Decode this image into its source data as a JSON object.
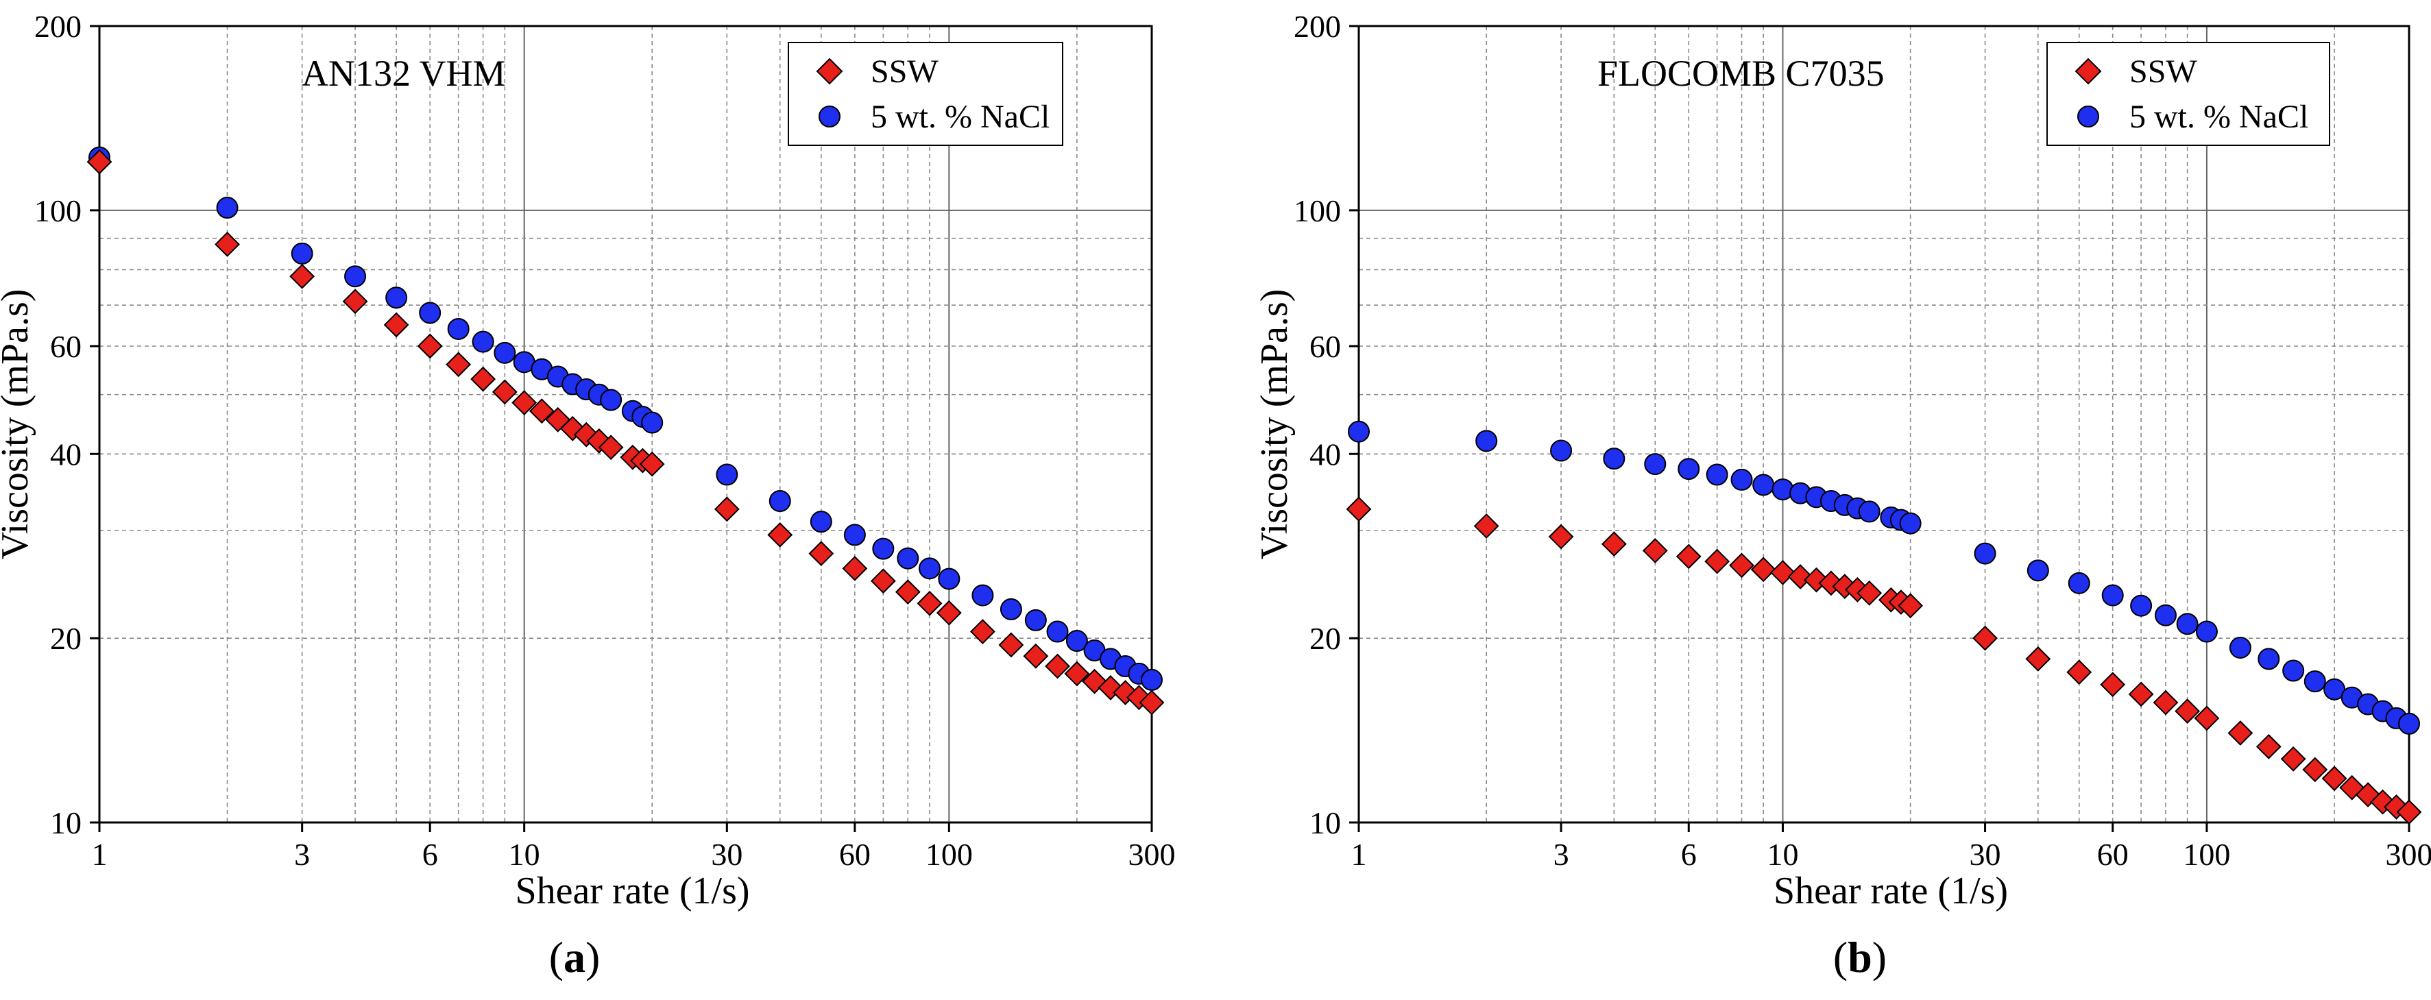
{
  "chart_data": [
    {
      "type": "scatter",
      "panel_label": "a",
      "title": "AN132 VHM",
      "xlabel": "Shear rate (1/s)",
      "ylabel": "Viscosity (mPa.s)",
      "xscale": "log",
      "yscale": "log",
      "xlim": [
        1,
        300
      ],
      "ylim": [
        10,
        200
      ],
      "xticks": [
        1,
        3,
        6,
        10,
        30,
        60,
        100,
        300
      ],
      "yticks": [
        10,
        20,
        40,
        60,
        100,
        200
      ],
      "grid": true,
      "legend_position": "top-right",
      "series": [
        {
          "name": "SSW",
          "marker": "diamond",
          "color": "#e8201c",
          "x": [
            1,
            2,
            3,
            4,
            5,
            6,
            7,
            8,
            9,
            10,
            11,
            12,
            13,
            14,
            15,
            16,
            18,
            19,
            20,
            30,
            40,
            50,
            60,
            70,
            80,
            90,
            100,
            120,
            140,
            160,
            180,
            200,
            220,
            240,
            260,
            280,
            300
          ],
          "y": [
            120,
            88,
            78,
            71,
            65,
            60,
            56,
            53,
            50.5,
            48.5,
            47,
            45.5,
            44,
            43,
            42,
            41,
            39.5,
            39,
            38.5,
            32.5,
            29.5,
            27.5,
            26,
            24.8,
            23.8,
            22.8,
            22,
            20.5,
            19.5,
            18.7,
            18,
            17.5,
            17,
            16.6,
            16.3,
            16,
            15.7
          ]
        },
        {
          "name": "5 wt. % NaCl",
          "marker": "circle",
          "color": "#1f2ff0",
          "x": [
            1,
            2,
            3,
            4,
            5,
            6,
            7,
            8,
            9,
            10,
            11,
            12,
            13,
            14,
            15,
            16,
            18,
            19,
            20,
            30,
            40,
            50,
            60,
            70,
            80,
            90,
            100,
            120,
            140,
            160,
            180,
            200,
            220,
            240,
            260,
            280,
            300
          ],
          "y": [
            122,
            101,
            85,
            78,
            72,
            68,
            64,
            61,
            58.5,
            56.5,
            55,
            53.5,
            52,
            51,
            50,
            49,
            47,
            46,
            45,
            37,
            33.5,
            31,
            29.5,
            28,
            27,
            26,
            25,
            23.5,
            22.3,
            21.4,
            20.5,
            19.8,
            19.1,
            18.5,
            18,
            17.5,
            17.1
          ]
        }
      ]
    },
    {
      "type": "scatter",
      "panel_label": "b",
      "title": "FLOCOMB C7035",
      "xlabel": "Shear rate (1/s)",
      "ylabel": "Viscosity (mPa.s)",
      "xscale": "log",
      "yscale": "log",
      "xlim": [
        1,
        300
      ],
      "ylim": [
        10,
        200
      ],
      "xticks": [
        1,
        3,
        6,
        10,
        30,
        60,
        100,
        300
      ],
      "yticks": [
        10,
        20,
        40,
        60,
        100,
        200
      ],
      "grid": true,
      "legend_position": "top-right",
      "series": [
        {
          "name": "SSW",
          "marker": "diamond",
          "color": "#e8201c",
          "x": [
            1,
            2,
            3,
            4,
            5,
            6,
            7,
            8,
            9,
            10,
            11,
            12,
            13,
            14,
            15,
            16,
            18,
            19,
            20,
            30,
            40,
            50,
            60,
            70,
            80,
            90,
            100,
            120,
            140,
            160,
            180,
            200,
            220,
            240,
            260,
            280,
            300
          ],
          "y": [
            32.5,
            30.5,
            29.3,
            28.5,
            27.8,
            27.2,
            26.7,
            26.3,
            25.9,
            25.6,
            25.2,
            24.9,
            24.6,
            24.3,
            24,
            23.7,
            23.1,
            22.9,
            22.6,
            20,
            18.5,
            17.6,
            16.8,
            16.2,
            15.7,
            15.2,
            14.8,
            14,
            13.3,
            12.7,
            12.2,
            11.8,
            11.4,
            11.1,
            10.8,
            10.6,
            10.4
          ]
        },
        {
          "name": "5 wt. % NaCl",
          "marker": "circle",
          "color": "#1f2ff0",
          "x": [
            1,
            2,
            3,
            4,
            5,
            6,
            7,
            8,
            9,
            10,
            11,
            12,
            13,
            14,
            15,
            16,
            18,
            19,
            20,
            30,
            40,
            50,
            60,
            70,
            80,
            90,
            100,
            120,
            140,
            160,
            180,
            200,
            220,
            240,
            260,
            280,
            300
          ],
          "y": [
            43.5,
            42,
            40.5,
            39.3,
            38.5,
            37.8,
            37,
            36.3,
            35.6,
            35,
            34.5,
            34,
            33.5,
            33,
            32.6,
            32.2,
            31.5,
            31.2,
            30.8,
            27.5,
            25.8,
            24.6,
            23.5,
            22.6,
            21.8,
            21.1,
            20.5,
            19.3,
            18.5,
            17.7,
            17,
            16.5,
            16,
            15.6,
            15.2,
            14.8,
            14.5
          ]
        }
      ]
    }
  ]
}
